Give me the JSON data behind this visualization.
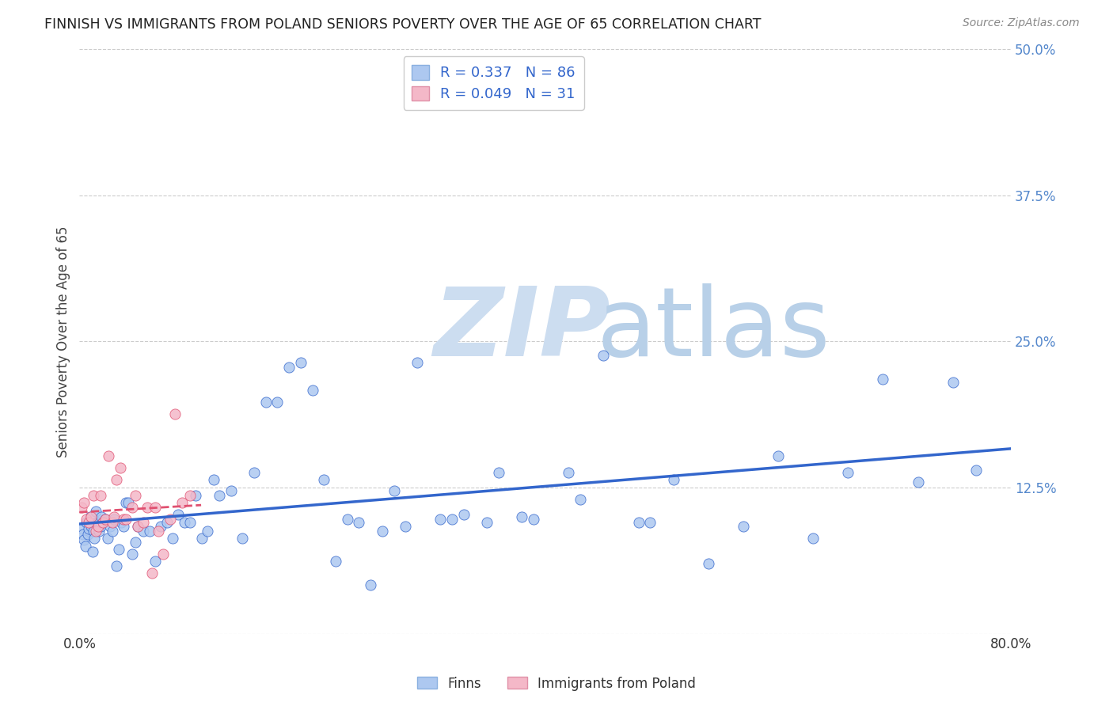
{
  "title": "FINNISH VS IMMIGRANTS FROM POLAND SENIORS POVERTY OVER THE AGE OF 65 CORRELATION CHART",
  "source": "Source: ZipAtlas.com",
  "ylabel": "Seniors Poverty Over the Age of 65",
  "xlim": [
    0.0,
    0.8
  ],
  "ylim": [
    0.0,
    0.5
  ],
  "xticks": [
    0.0,
    0.1,
    0.2,
    0.3,
    0.4,
    0.5,
    0.6,
    0.7,
    0.8
  ],
  "yticks": [
    0.0,
    0.125,
    0.25,
    0.375,
    0.5
  ],
  "r_finns": 0.337,
  "n_finns": 86,
  "r_poland": 0.049,
  "n_poland": 31,
  "finns_color": "#adc8f0",
  "poland_color": "#f4b8c8",
  "finns_line_color": "#3366cc",
  "poland_line_color": "#e05070",
  "background_color": "#ffffff",
  "grid_color": "#cccccc",
  "finns_x": [
    0.002,
    0.003,
    0.004,
    0.005,
    0.006,
    0.007,
    0.008,
    0.009,
    0.01,
    0.011,
    0.012,
    0.013,
    0.014,
    0.015,
    0.016,
    0.017,
    0.018,
    0.019,
    0.02,
    0.022,
    0.024,
    0.026,
    0.028,
    0.03,
    0.032,
    0.034,
    0.036,
    0.038,
    0.04,
    0.042,
    0.045,
    0.048,
    0.05,
    0.055,
    0.06,
    0.065,
    0.07,
    0.075,
    0.08,
    0.085,
    0.09,
    0.095,
    0.1,
    0.105,
    0.11,
    0.115,
    0.12,
    0.13,
    0.14,
    0.15,
    0.16,
    0.17,
    0.18,
    0.19,
    0.2,
    0.21,
    0.22,
    0.23,
    0.24,
    0.25,
    0.27,
    0.29,
    0.31,
    0.33,
    0.36,
    0.39,
    0.42,
    0.45,
    0.48,
    0.51,
    0.54,
    0.57,
    0.6,
    0.63,
    0.66,
    0.69,
    0.72,
    0.75,
    0.77,
    0.49,
    0.38,
    0.35,
    0.32,
    0.28,
    0.26,
    0.43
  ],
  "finns_y": [
    0.09,
    0.085,
    0.08,
    0.075,
    0.095,
    0.085,
    0.09,
    0.1,
    0.092,
    0.07,
    0.088,
    0.082,
    0.105,
    0.095,
    0.095,
    0.088,
    0.092,
    0.1,
    0.095,
    0.098,
    0.082,
    0.092,
    0.088,
    0.098,
    0.058,
    0.072,
    0.095,
    0.092,
    0.112,
    0.112,
    0.068,
    0.078,
    0.092,
    0.088,
    0.088,
    0.062,
    0.092,
    0.095,
    0.082,
    0.102,
    0.095,
    0.095,
    0.118,
    0.082,
    0.088,
    0.132,
    0.118,
    0.122,
    0.082,
    0.138,
    0.198,
    0.198,
    0.228,
    0.232,
    0.208,
    0.132,
    0.062,
    0.098,
    0.095,
    0.042,
    0.122,
    0.232,
    0.098,
    0.102,
    0.138,
    0.098,
    0.138,
    0.238,
    0.095,
    0.132,
    0.06,
    0.092,
    0.152,
    0.082,
    0.138,
    0.218,
    0.13,
    0.215,
    0.14,
    0.095,
    0.1,
    0.095,
    0.098,
    0.092,
    0.088,
    0.115
  ],
  "poland_x": [
    0.002,
    0.004,
    0.006,
    0.008,
    0.01,
    0.012,
    0.014,
    0.016,
    0.018,
    0.02,
    0.022,
    0.025,
    0.028,
    0.03,
    0.032,
    0.035,
    0.038,
    0.04,
    0.045,
    0.048,
    0.05,
    0.055,
    0.058,
    0.062,
    0.065,
    0.068,
    0.072,
    0.078,
    0.082,
    0.088,
    0.095
  ],
  "poland_y": [
    0.108,
    0.112,
    0.098,
    0.095,
    0.1,
    0.118,
    0.088,
    0.092,
    0.118,
    0.095,
    0.098,
    0.152,
    0.095,
    0.1,
    0.132,
    0.142,
    0.098,
    0.098,
    0.108,
    0.118,
    0.092,
    0.095,
    0.108,
    0.052,
    0.108,
    0.088,
    0.068,
    0.098,
    0.188,
    0.112,
    0.118
  ]
}
